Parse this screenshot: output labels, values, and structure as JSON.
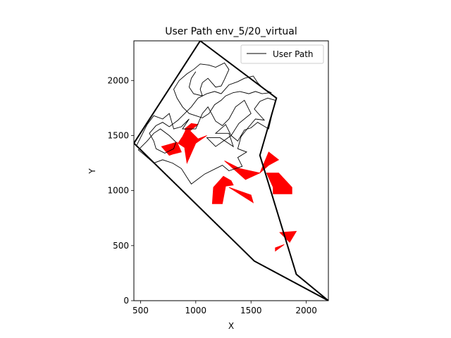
{
  "chart_data": {
    "type": "line",
    "title": "User Path env_5/20_virtual",
    "xlabel": "X",
    "ylabel": "Y",
    "xlim": [
      440,
      2200
    ],
    "ylim": [
      0,
      2360
    ],
    "xticks": [
      500,
      1000,
      1500,
      2000
    ],
    "yticks": [
      0,
      500,
      1000,
      1500,
      2000
    ],
    "grid": false,
    "legend": {
      "placement": "top-right",
      "entries": [
        {
          "label": "User Path",
          "color": "#000000"
        }
      ]
    },
    "colors": {
      "path": "#000000",
      "boundary": "#000000",
      "obstacle": "#ff0000"
    },
    "boundary": [
      [
        440,
        1430
      ],
      [
        1040,
        2360
      ],
      [
        1730,
        1840
      ],
      [
        1580,
        1320
      ],
      [
        1910,
        240
      ],
      [
        2200,
        0
      ],
      [
        1530,
        360
      ],
      [
        440,
        1430
      ]
    ],
    "obstacles": [
      [
        [
          690,
          1400
        ],
        [
          830,
          1440
        ],
        [
          870,
          1350
        ],
        [
          790,
          1330
        ],
        [
          760,
          1320
        ]
      ],
      [
        [
          840,
          1430
        ],
        [
          880,
          1490
        ],
        [
          910,
          1550
        ],
        [
          940,
          1360
        ],
        [
          900,
          1390
        ]
      ],
      [
        [
          920,
          1520
        ],
        [
          1020,
          1600
        ],
        [
          960,
          1610
        ],
        [
          900,
          1560
        ]
      ],
      [
        [
          920,
          1570
        ],
        [
          1020,
          1470
        ],
        [
          1100,
          1500
        ],
        [
          1000,
          1430
        ],
        [
          920,
          1250
        ],
        [
          900,
          1380
        ]
      ],
      [
        [
          1260,
          1270
        ],
        [
          1450,
          1100
        ],
        [
          1580,
          1160
        ],
        [
          1400,
          1200
        ]
      ],
      [
        [
          1580,
          1160
        ],
        [
          1660,
          1350
        ],
        [
          1750,
          1280
        ],
        [
          1660,
          1230
        ]
      ],
      [
        [
          1640,
          1160
        ],
        [
          1700,
          1030
        ],
        [
          1700,
          970
        ],
        [
          1870,
          970
        ],
        [
          1870,
          1030
        ],
        [
          1750,
          1160
        ]
      ],
      [
        [
          1160,
          1030
        ],
        [
          1250,
          1130
        ],
        [
          1320,
          1090
        ],
        [
          1340,
          1050
        ],
        [
          1270,
          1040
        ],
        [
          1240,
          880
        ],
        [
          1150,
          880
        ]
      ],
      [
        [
          1300,
          1030
        ],
        [
          1520,
          890
        ],
        [
          1500,
          960
        ]
      ],
      [
        [
          1760,
          620
        ],
        [
          1910,
          630
        ],
        [
          1850,
          530
        ]
      ],
      [
        [
          1720,
          450
        ],
        [
          1800,
          510
        ],
        [
          1720,
          480
        ]
      ]
    ],
    "series": [
      {
        "name": "User Path",
        "points": [
          [
            460,
            1400
          ],
          [
            560,
            1600
          ],
          [
            620,
            1680
          ],
          [
            700,
            1650
          ],
          [
            760,
            1700
          ],
          [
            800,
            1560
          ],
          [
            870,
            1580
          ],
          [
            940,
            1650
          ],
          [
            880,
            1560
          ],
          [
            1000,
            1560
          ],
          [
            1060,
            1700
          ],
          [
            1110,
            1760
          ],
          [
            1180,
            1630
          ],
          [
            1240,
            1590
          ],
          [
            1300,
            1650
          ],
          [
            1360,
            1760
          ],
          [
            1440,
            1820
          ],
          [
            1500,
            1700
          ],
          [
            1390,
            1610
          ],
          [
            1320,
            1500
          ],
          [
            1270,
            1600
          ],
          [
            1180,
            1520
          ],
          [
            1300,
            1520
          ],
          [
            1340,
            1400
          ],
          [
            1220,
            1480
          ],
          [
            1100,
            1480
          ],
          [
            1180,
            1400
          ],
          [
            1320,
            1500
          ],
          [
            1380,
            1450
          ],
          [
            1440,
            1550
          ],
          [
            1500,
            1570
          ],
          [
            1560,
            1620
          ],
          [
            1660,
            1560
          ],
          [
            1720,
            1820
          ],
          [
            1650,
            1840
          ],
          [
            1580,
            1810
          ],
          [
            1530,
            1740
          ],
          [
            1620,
            1640
          ],
          [
            1540,
            1650
          ],
          [
            1480,
            1580
          ],
          [
            1410,
            1490
          ],
          [
            1380,
            1380
          ],
          [
            1460,
            1350
          ],
          [
            1380,
            1300
          ],
          [
            1420,
            1220
          ],
          [
            1300,
            1180
          ],
          [
            1240,
            1230
          ],
          [
            1080,
            1150
          ],
          [
            960,
            1060
          ],
          [
            920,
            1120
          ],
          [
            870,
            1200
          ],
          [
            790,
            1250
          ],
          [
            700,
            1280
          ],
          [
            620,
            1250
          ],
          [
            540,
            1320
          ],
          [
            480,
            1370
          ],
          [
            560,
            1450
          ],
          [
            620,
            1520
          ],
          [
            680,
            1560
          ],
          [
            760,
            1500
          ],
          [
            820,
            1440
          ],
          [
            800,
            1380
          ],
          [
            720,
            1340
          ],
          [
            640,
            1380
          ],
          [
            620,
            1450
          ],
          [
            580,
            1520
          ],
          [
            640,
            1590
          ],
          [
            700,
            1620
          ],
          [
            760,
            1580
          ],
          [
            840,
            1640
          ],
          [
            900,
            1700
          ],
          [
            960,
            1760
          ],
          [
            1020,
            1840
          ],
          [
            1100,
            1880
          ],
          [
            1170,
            1900
          ],
          [
            1230,
            1880
          ],
          [
            1300,
            1960
          ],
          [
            1380,
            1990
          ],
          [
            1440,
            2020
          ],
          [
            1520,
            2040
          ],
          [
            1560,
            1980
          ],
          [
            1620,
            1920
          ],
          [
            1680,
            1890
          ],
          [
            1600,
            1880
          ],
          [
            1540,
            1900
          ],
          [
            1480,
            1880
          ],
          [
            1400,
            1900
          ],
          [
            1340,
            1890
          ],
          [
            1270,
            1860
          ],
          [
            1230,
            1820
          ],
          [
            1170,
            1780
          ],
          [
            1120,
            1700
          ],
          [
            1060,
            1660
          ],
          [
            1000,
            1680
          ],
          [
            940,
            1700
          ],
          [
            880,
            1760
          ],
          [
            830,
            1840
          ],
          [
            800,
            1920
          ],
          [
            850,
            2000
          ],
          [
            920,
            2060
          ],
          [
            980,
            2100
          ],
          [
            1040,
            2150
          ],
          [
            1120,
            2140
          ],
          [
            1180,
            2120
          ],
          [
            1260,
            2160
          ],
          [
            1300,
            2100
          ],
          [
            1260,
            2010
          ],
          [
            1230,
            1950
          ],
          [
            1180,
            1940
          ],
          [
            1110,
            2020
          ],
          [
            1060,
            1980
          ],
          [
            1040,
            1920
          ],
          [
            1060,
            1860
          ],
          [
            980,
            1880
          ],
          [
            940,
            1940
          ],
          [
            960,
            2020
          ],
          [
            1000,
            2080
          ]
        ]
      }
    ]
  }
}
